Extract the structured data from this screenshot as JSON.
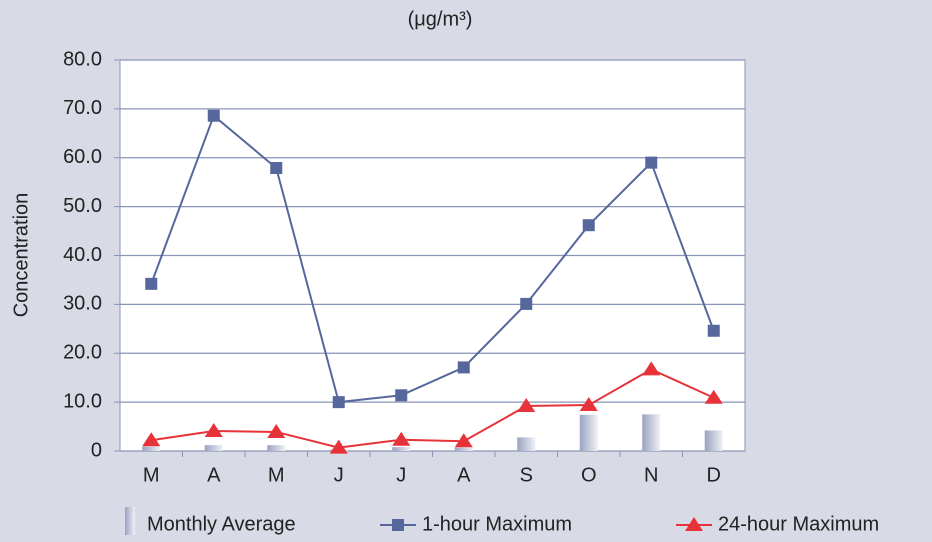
{
  "chart_data": {
    "type": "combo",
    "unit": "(μg/m³)",
    "y_label": "Concentration",
    "categories": [
      "M",
      "A",
      "M",
      "J",
      "J",
      "A",
      "S",
      "O",
      "N",
      "D"
    ],
    "ylim": [
      0,
      80
    ],
    "yticks": [
      0,
      {
        "value": 10,
        "label": "10.0"
      },
      {
        "value": 20,
        "label": "20.0"
      },
      {
        "value": 30,
        "label": "30.0"
      },
      {
        "value": 40,
        "label": "40.0"
      },
      {
        "value": 50,
        "label": "50.0"
      },
      {
        "value": 60,
        "label": "60.0"
      },
      {
        "value": 70,
        "label": "70.0"
      },
      {
        "value": 80,
        "label": "80.0"
      }
    ],
    "grid": true,
    "series": [
      {
        "name": "Monthly Average",
        "kind": "bar",
        "color": "#9aa3bf",
        "values": [
          0.9,
          1.2,
          1.2,
          0.3,
          0.8,
          0.7,
          2.8,
          7.4,
          7.5,
          4.2
        ]
      },
      {
        "name": "1-hour Maximum",
        "kind": "line",
        "marker": "square",
        "color": "#56679c",
        "values": [
          34.2,
          68.6,
          57.9,
          10.0,
          11.4,
          17.1,
          30.1,
          46.2,
          59.0,
          24.6
        ]
      },
      {
        "name": "24-hour Maximum",
        "kind": "line",
        "marker": "triangle",
        "color": "#e8323a",
        "values": [
          2.2,
          4.1,
          3.9,
          0.7,
          2.3,
          2.0,
          9.2,
          9.4,
          16.7,
          10.9
        ]
      }
    ]
  }
}
